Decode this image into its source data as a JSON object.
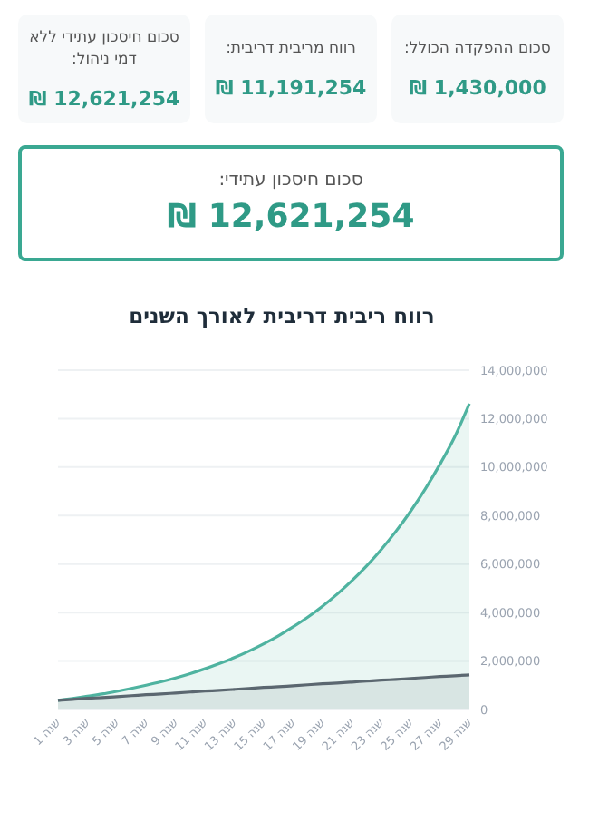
{
  "chart_data": [
    {
      "type": "other",
      "title": "סכום חיסכון עתידי:",
      "subtitle": "12,621,254 ₪",
      "annotations": [
        "סכום ההפקדה הכולל:",
        "1,430,000 ₪",
        "רווח מריבית דריבית:",
        "11,191,254 ₪",
        "סכום חיסכון עתידי ללא דמי ניהול:",
        "12,621,254 ₪"
      ]
    },
    {
      "type": "area",
      "title": "רווח ריבית דריבית לאורך השנים",
      "categories": [
        "1 שנה",
        null,
        "3 שנה",
        null,
        "5 שנה",
        null,
        "7 שנה",
        null,
        "9 שנה",
        null,
        "11 שנה",
        null,
        "13 שנה",
        null,
        "15 שנה",
        null,
        "17 שנה",
        null,
        "19 שנה",
        null,
        "21 שנה",
        null,
        "23 שנה",
        null,
        "25 שנה",
        null,
        "27 שנה",
        null,
        "29 שנה"
      ],
      "series": [
        {
          "color": "#4fb3a0",
          "values": [
            380000,
            460000,
            550000,
            640000,
            750000,
            870000,
            1000000,
            1140000,
            1300000,
            1480000,
            1680000,
            1900000,
            2140000,
            2410000,
            2710000,
            3040000,
            3410000,
            3810000,
            4260000,
            4760000,
            5310000,
            5920000,
            6600000,
            7350000,
            8180000,
            9100000,
            10120000,
            11250000,
            12620000
          ]
        },
        {
          "color": "#5b6770",
          "values": [
            380000,
            420000,
            460000,
            490000,
            530000,
            570000,
            610000,
            640000,
            680000,
            720000,
            760000,
            790000,
            830000,
            870000,
            910000,
            940000,
            980000,
            1020000,
            1060000,
            1090000,
            1130000,
            1170000,
            1210000,
            1240000,
            1280000,
            1320000,
            1360000,
            1390000,
            1430000
          ]
        }
      ],
      "ylim": [
        0,
        14000000
      ],
      "yticks": [
        {
          "value": 0,
          "label": "0"
        },
        {
          "value": 2000000,
          "label": "2,000,000"
        },
        {
          "value": 4000000,
          "label": "4,000,000"
        },
        {
          "value": 6000000,
          "label": "6,000,000"
        },
        {
          "value": 8000000,
          "label": "8,000,000"
        },
        {
          "value": 10000000,
          "label": "10,000,000"
        },
        {
          "value": 12000000,
          "label": "12,000,000"
        },
        {
          "value": 14000000,
          "label": "14,000,000"
        }
      ],
      "grid": "y"
    }
  ]
}
